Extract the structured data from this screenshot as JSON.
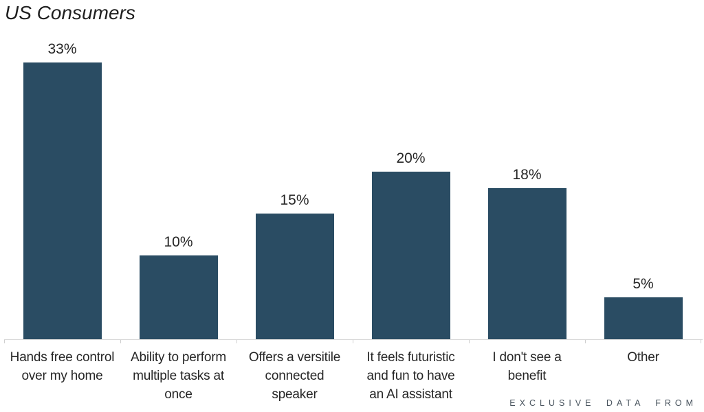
{
  "chart_data": {
    "type": "bar",
    "title": "US Consumers",
    "categories": [
      "Hands free control over my home",
      "Ability to perform multiple tasks at once",
      "Offers a versitile connected speaker",
      "It feels futuristic and fun to have an AI assistant",
      "I don't see a benefit",
      "Other"
    ],
    "category_lines": [
      [
        "Hands free control",
        "over my home"
      ],
      [
        "Ability to perform",
        "multiple tasks at",
        "once"
      ],
      [
        "Offers a versitile",
        "connected",
        "speaker"
      ],
      [
        "It feels futuristic",
        "and fun to have",
        "an AI assistant"
      ],
      [
        "I don't see a",
        "benefit"
      ],
      [
        "Other"
      ]
    ],
    "values": [
      33,
      10,
      15,
      20,
      18,
      5
    ],
    "value_labels": [
      "33%",
      "10%",
      "15%",
      "20%",
      "18%",
      "5%"
    ],
    "value_suffix": "%",
    "xlabel": "",
    "ylabel": "",
    "ylim": [
      0,
      40
    ],
    "grid": false,
    "legend": "none",
    "value_label_position": "above-bars",
    "bar_color": "#2a4c63"
  },
  "footer": {
    "credit": "EXCLUSIVE DATA FROM"
  },
  "colors": {
    "bar-color": "#2a4c63",
    "axis-color": "#d9d9d9",
    "tick-color": "#cfcfcf",
    "text-color": "#262626",
    "title-color": "#1f1f1f",
    "footer-color": "#49545e"
  }
}
